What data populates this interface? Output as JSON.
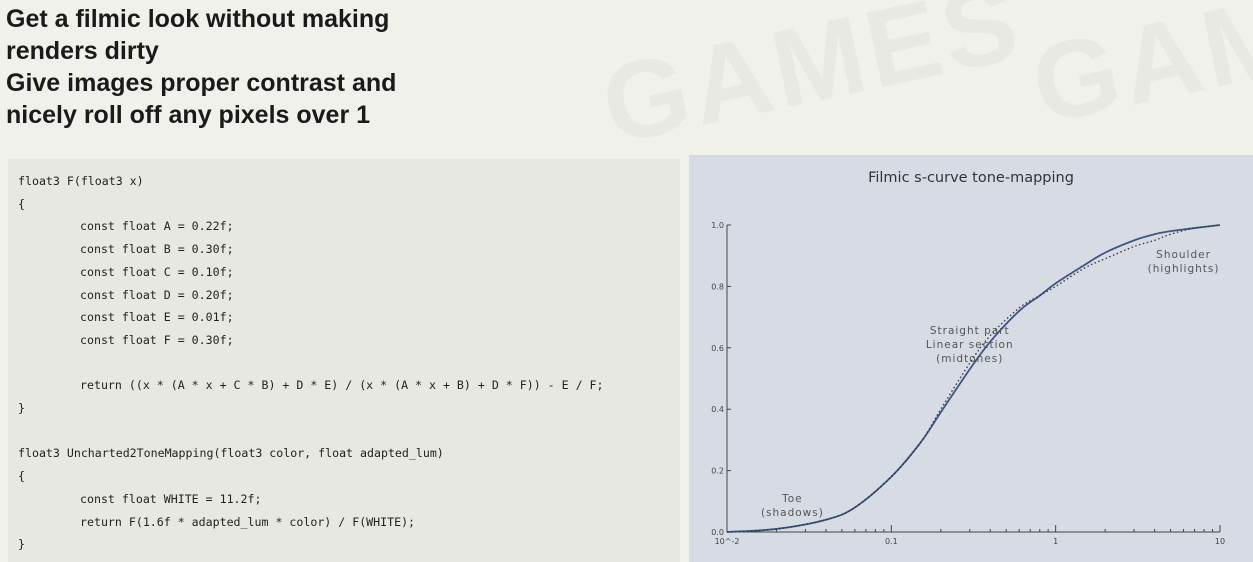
{
  "slide": {
    "headline_lines": [
      "Get a filmic look without making",
      "renders dirty",
      "Give images proper contrast and",
      "nicely roll off any pixels over 1"
    ],
    "watermark_text": "GAMES"
  },
  "code": {
    "lines": [
      {
        "text": "float3 F(float3 x)",
        "indent": false
      },
      {
        "text": "{",
        "indent": false
      },
      {
        "text": "const float A = 0.22f;",
        "indent": true
      },
      {
        "text": "const float B = 0.30f;",
        "indent": true
      },
      {
        "text": "const float C = 0.10f;",
        "indent": true
      },
      {
        "text": "const float D = 0.20f;",
        "indent": true
      },
      {
        "text": "const float E = 0.01f;",
        "indent": true
      },
      {
        "text": "const float F = 0.30f;",
        "indent": true
      },
      {
        "text": "",
        "indent": false
      },
      {
        "text": "return ((x * (A * x + C * B) + D * E) / (x * (A * x + B) + D * F)) - E / F;",
        "indent": true
      },
      {
        "text": "}",
        "indent": false
      },
      {
        "text": "",
        "indent": false
      },
      {
        "text": "float3 Uncharted2ToneMapping(float3 color, float adapted_lum)",
        "indent": false
      },
      {
        "text": "{",
        "indent": false
      },
      {
        "text": "const float WHITE = 11.2f;",
        "indent": true
      },
      {
        "text": "return F(1.6f * adapted_lum * color) / F(WHITE);",
        "indent": true
      },
      {
        "text": "}",
        "indent": false
      }
    ]
  },
  "chart_data": {
    "type": "line",
    "title": "Filmic s-curve tone-mapping",
    "xlabel": "",
    "ylabel": "",
    "x_scale": "log",
    "xlim": [
      0.01,
      10
    ],
    "ylim": [
      0,
      1.0
    ],
    "x_ticks": [
      "10^-2",
      "0.1",
      "1",
      "10"
    ],
    "y_ticks": [
      "0.0",
      "0.2",
      "0.4",
      "0.6",
      "0.8",
      "1.0"
    ],
    "grid": false,
    "series": [
      {
        "style": "solid",
        "color": "#3d5582",
        "x": [
          0.01,
          0.02,
          0.04,
          0.06,
          0.1,
          0.15,
          0.2,
          0.3,
          0.4,
          0.6,
          0.8,
          1.0,
          1.5,
          2,
          3,
          4,
          5,
          7,
          10
        ],
        "y": [
          0.0,
          0.01,
          0.04,
          0.08,
          0.18,
          0.29,
          0.39,
          0.53,
          0.62,
          0.72,
          0.77,
          0.81,
          0.87,
          0.91,
          0.95,
          0.97,
          0.98,
          0.99,
          1.0
        ]
      },
      {
        "style": "dotted",
        "color": "#333333",
        "x": [
          0.01,
          0.02,
          0.04,
          0.06,
          0.1,
          0.15,
          0.2,
          0.3,
          0.4,
          0.6,
          0.8,
          1.0,
          1.5,
          2,
          3,
          4,
          5,
          7,
          10
        ],
        "y": [
          0.0,
          0.01,
          0.04,
          0.08,
          0.18,
          0.29,
          0.4,
          0.55,
          0.64,
          0.73,
          0.77,
          0.8,
          0.86,
          0.89,
          0.93,
          0.95,
          0.97,
          0.99,
          1.0
        ]
      }
    ],
    "annotations": [
      {
        "lines": [
          "Toe",
          "(shadows)"
        ],
        "x": 0.025,
        "y": 0.075
      },
      {
        "lines": [
          "Straight part",
          "Linear section",
          "(midtones)"
        ],
        "x": 0.3,
        "y": 0.6
      },
      {
        "lines": [
          "Shoulder",
          "(highlights)"
        ],
        "x": 6,
        "y": 0.87
      }
    ]
  }
}
